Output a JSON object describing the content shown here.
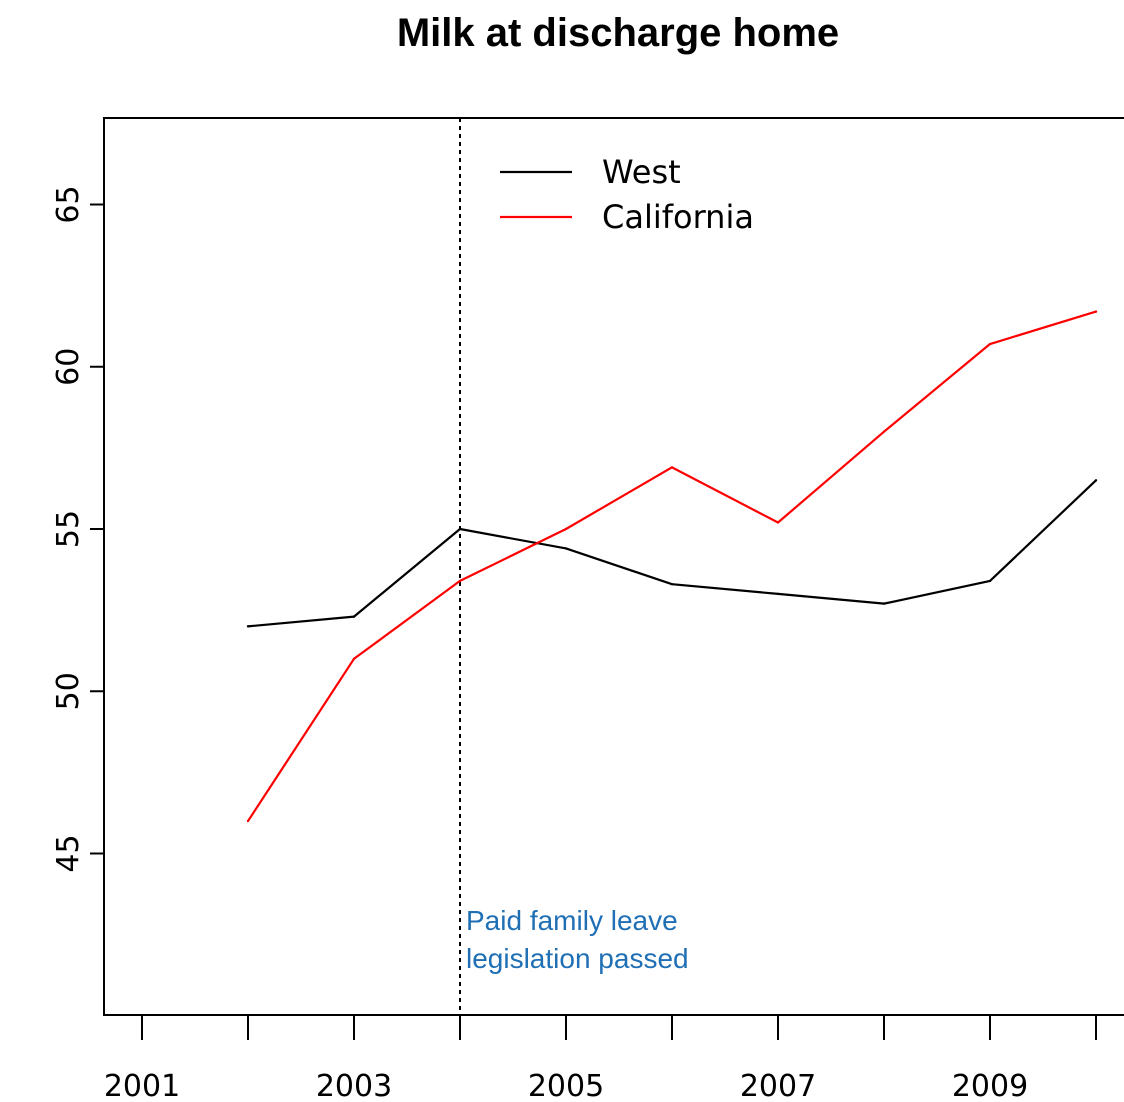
{
  "chart_data": {
    "type": "line",
    "title": "Milk at discharge home",
    "xlabel": "",
    "ylabel": "",
    "xlim": [
      2001,
      2010
    ],
    "ylim": [
      40.8,
      67.5
    ],
    "x_ticks": [
      2001,
      2002,
      2003,
      2004,
      2005,
      2006,
      2007,
      2008,
      2009,
      2010
    ],
    "x_tick_labels": [
      "2001",
      "2003",
      "2005",
      "2007",
      "2009"
    ],
    "y_ticks": [
      45,
      50,
      55,
      60,
      65
    ],
    "y_tick_labels": [
      "45",
      "50",
      "55",
      "60",
      "65"
    ],
    "x": [
      2002,
      2003,
      2004,
      2005,
      2006,
      2007,
      2008,
      2009,
      2010
    ],
    "series": [
      {
        "name": "West",
        "color": "#000000",
        "values": [
          52.0,
          52.3,
          55.0,
          54.4,
          53.3,
          53.0,
          52.7,
          53.4,
          56.5
        ]
      },
      {
        "name": "California",
        "color": "#ff0000",
        "values": [
          46.0,
          51.0,
          53.4,
          55.0,
          56.9,
          55.2,
          58.0,
          60.7,
          61.7
        ]
      }
    ],
    "legend_position": "top-center",
    "grid": false,
    "reference_line": {
      "x": 2004,
      "style": "dotted",
      "color": "#000000"
    },
    "annotation": {
      "lines": [
        "Paid family leave",
        "legislation passed"
      ],
      "color": "#1f6fb5"
    }
  }
}
